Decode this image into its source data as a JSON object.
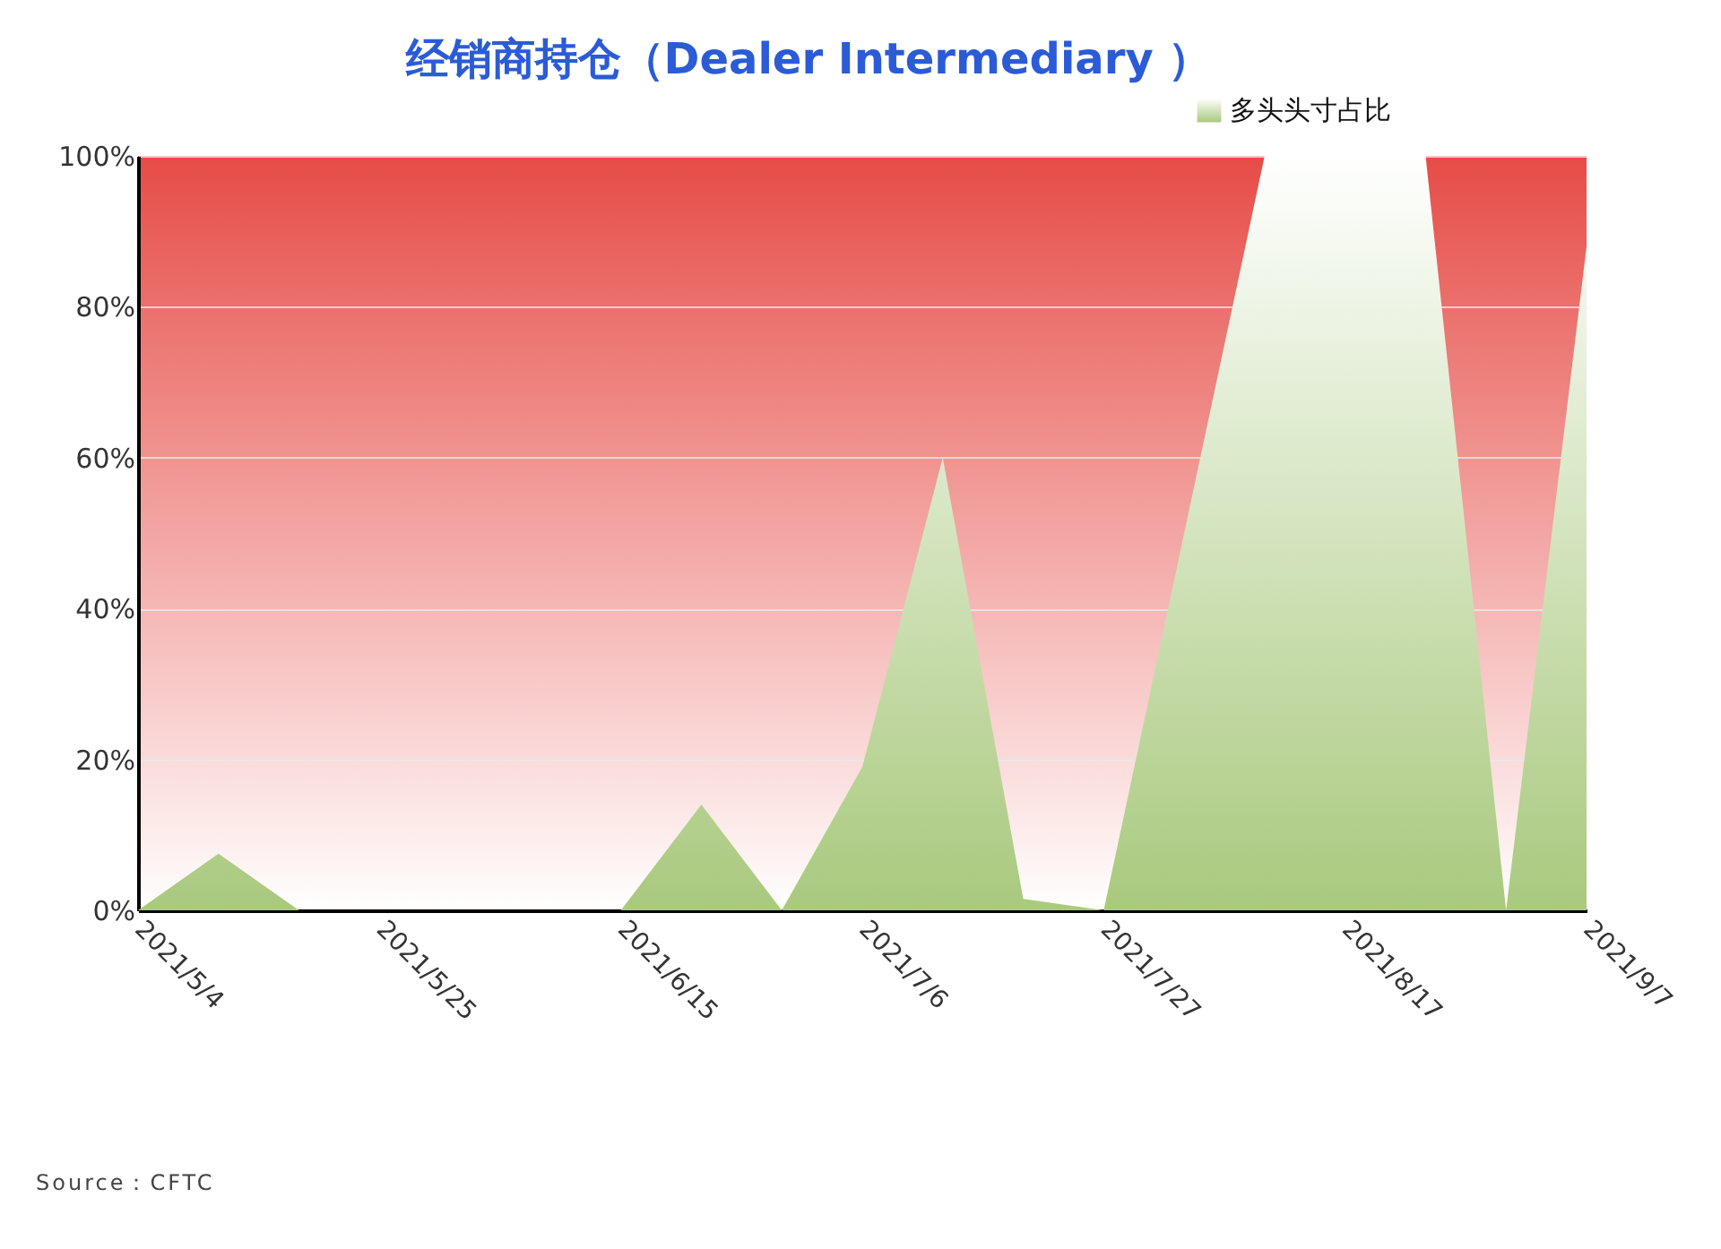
{
  "chart_data": {
    "type": "area",
    "title": "经销商持仓（Dealer Intermediary ）",
    "annotations": [
      "Source：CFTC"
    ],
    "x": [
      "2021-05-04",
      "2021-05-11",
      "2021-05-18",
      "2021-05-25",
      "2021-06-01",
      "2021-06-08",
      "2021-06-15",
      "2021-06-22",
      "2021-06-29",
      "2021-07-06",
      "2021-07-13",
      "2021-07-20",
      "2021-07-27",
      "2021-08-03",
      "2021-08-10",
      "2021-08-17",
      "2021-08-24",
      "2021-08-31",
      "2021-09-07"
    ],
    "series": [
      {
        "name": "多头头寸占比",
        "color": "#a9c97e",
        "values": [
          0,
          7.5,
          0,
          0,
          0,
          0,
          0,
          14,
          0,
          19,
          60,
          1.5,
          0,
          50,
          100,
          100,
          100,
          0,
          88
        ]
      }
    ],
    "xlim": [
      "2021-05-04",
      "2021-09-07"
    ],
    "xticks": [
      {
        "value": "2021-05-04",
        "label": "2021/5/4"
      },
      {
        "value": "2021-05-25",
        "label": "2021/5/25"
      },
      {
        "value": "2021-06-15",
        "label": "2021/6/15"
      },
      {
        "value": "2021-07-06",
        "label": "2021/7/6"
      },
      {
        "value": "2021-07-27",
        "label": "2021/7/27"
      },
      {
        "value": "2021-08-17",
        "label": "2021/8/17"
      },
      {
        "value": "2021-09-07",
        "label": "2021/9/7"
      }
    ],
    "ylim": [
      0,
      100
    ],
    "yticks": [
      {
        "value": 0,
        "label": "0%"
      },
      {
        "value": 20,
        "label": "20%"
      },
      {
        "value": 40,
        "label": "40%"
      },
      {
        "value": 60,
        "label": "60%"
      },
      {
        "value": 80,
        "label": "80%"
      },
      {
        "value": 100,
        "label": "100%"
      }
    ],
    "grid": "y",
    "legend": "top right"
  }
}
